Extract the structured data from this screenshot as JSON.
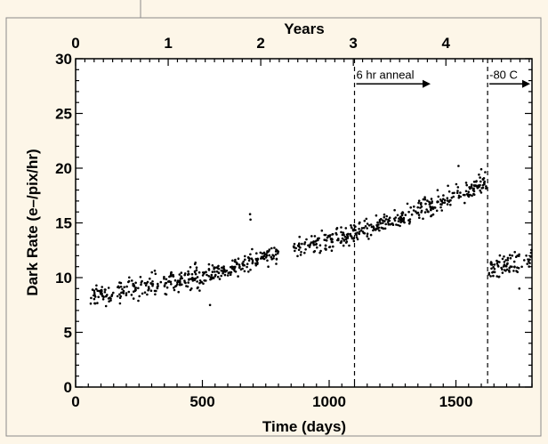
{
  "chart_data": {
    "type": "scatter",
    "title": "",
    "xlabel": "Time (days)",
    "ylabel": "Dark Rate (e–/pix/hr)",
    "x2label": "Years",
    "xlim": [
      0,
      1800
    ],
    "ylim": [
      0,
      30
    ],
    "x2lim": [
      0,
      4.93
    ],
    "x_ticks": [
      0,
      500,
      1000,
      1500
    ],
    "y_ticks": [
      0,
      5,
      10,
      15,
      20,
      25,
      30
    ],
    "x2_ticks": [
      0,
      1,
      2,
      3,
      4
    ],
    "grid": false,
    "legend": "none",
    "marker_color": "#000000",
    "series": [
      {
        "segments": [
          {
            "x_start": 50,
            "x_end": 150,
            "y_start": 8.2,
            "y_end": 8.6,
            "spread": 0.8,
            "count": 45
          },
          {
            "x_start": 165,
            "x_end": 480,
            "y_start": 8.7,
            "y_end": 10.2,
            "spread": 1.0,
            "count": 150
          },
          {
            "x_start": 480,
            "x_end": 640,
            "y_start": 9.8,
            "y_end": 11.2,
            "spread": 0.9,
            "count": 80
          },
          {
            "x_start": 640,
            "x_end": 800,
            "y_start": 11.0,
            "y_end": 12.4,
            "spread": 0.8,
            "count": 80
          },
          {
            "x_start": 860,
            "x_end": 1100,
            "y_start": 12.6,
            "y_end": 14.0,
            "spread": 0.9,
            "count": 120
          },
          {
            "x_start": 1100,
            "x_end": 1300,
            "y_start": 14.0,
            "y_end": 15.5,
            "spread": 0.8,
            "count": 100
          },
          {
            "x_start": 1300,
            "x_end": 1620,
            "y_start": 15.5,
            "y_end": 18.8,
            "spread": 0.9,
            "count": 150
          },
          {
            "x_start": 1630,
            "x_end": 1800,
            "y_start": 10.7,
            "y_end": 11.8,
            "spread": 0.9,
            "count": 80
          }
        ],
        "outliers": [
          [
            688,
            15.8
          ],
          [
            690,
            15.3
          ],
          [
            530,
            7.5
          ],
          [
            120,
            7.4
          ],
          [
            1750,
            9.0
          ],
          [
            1510,
            20.2
          ],
          [
            1600,
            19.9
          ]
        ]
      }
    ],
    "annotations": [
      {
        "text": "6 hr anneal",
        "x": 1100,
        "arrow_to_x": 1400,
        "y": 27.7
      },
      {
        "text": "-80 C",
        "x": 1625,
        "arrow_to_x": 1800,
        "y": 27.7
      }
    ],
    "vlines": [
      1100,
      1625
    ]
  }
}
